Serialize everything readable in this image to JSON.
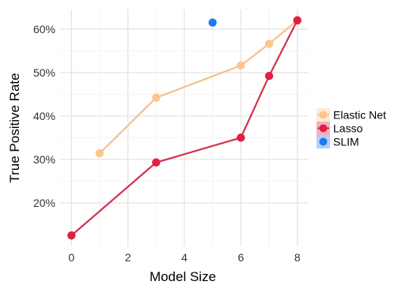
{
  "chart_data": {
    "type": "line",
    "xlabel": "Model Size",
    "ylabel": "True Positive Rate",
    "xlim": [
      -0.4,
      8.4
    ],
    "ylim": [
      10,
      64.5
    ],
    "x_ticks": [
      0,
      2,
      4,
      6,
      8
    ],
    "y_ticks": [
      20,
      30,
      40,
      50,
      60
    ],
    "y_tick_format": "percent",
    "grid": true,
    "legend_position": "right",
    "series": [
      {
        "name": "Elastic Net",
        "color": "#f6c08a",
        "marker_color": "#fbc68c",
        "points": [
          {
            "x": 1,
            "y": 31.4
          },
          {
            "x": 3,
            "y": 44.2
          },
          {
            "x": 6,
            "y": 51.6
          },
          {
            "x": 7,
            "y": 56.6
          },
          {
            "x": 8,
            "y": 62.0
          }
        ]
      },
      {
        "name": "Lasso",
        "color": "#d6314b",
        "marker_color": "#e0203f",
        "points": [
          {
            "x": 0,
            "y": 12.5
          },
          {
            "x": 3,
            "y": 29.3
          },
          {
            "x": 6,
            "y": 35.0
          },
          {
            "x": 7,
            "y": 49.2
          },
          {
            "x": 8,
            "y": 62.0
          }
        ]
      },
      {
        "name": "SLIM",
        "color": "#1e78f0",
        "marker_color": "#1e78f0",
        "points_only": true,
        "points": [
          {
            "x": 5,
            "y": 61.5
          }
        ]
      }
    ]
  }
}
